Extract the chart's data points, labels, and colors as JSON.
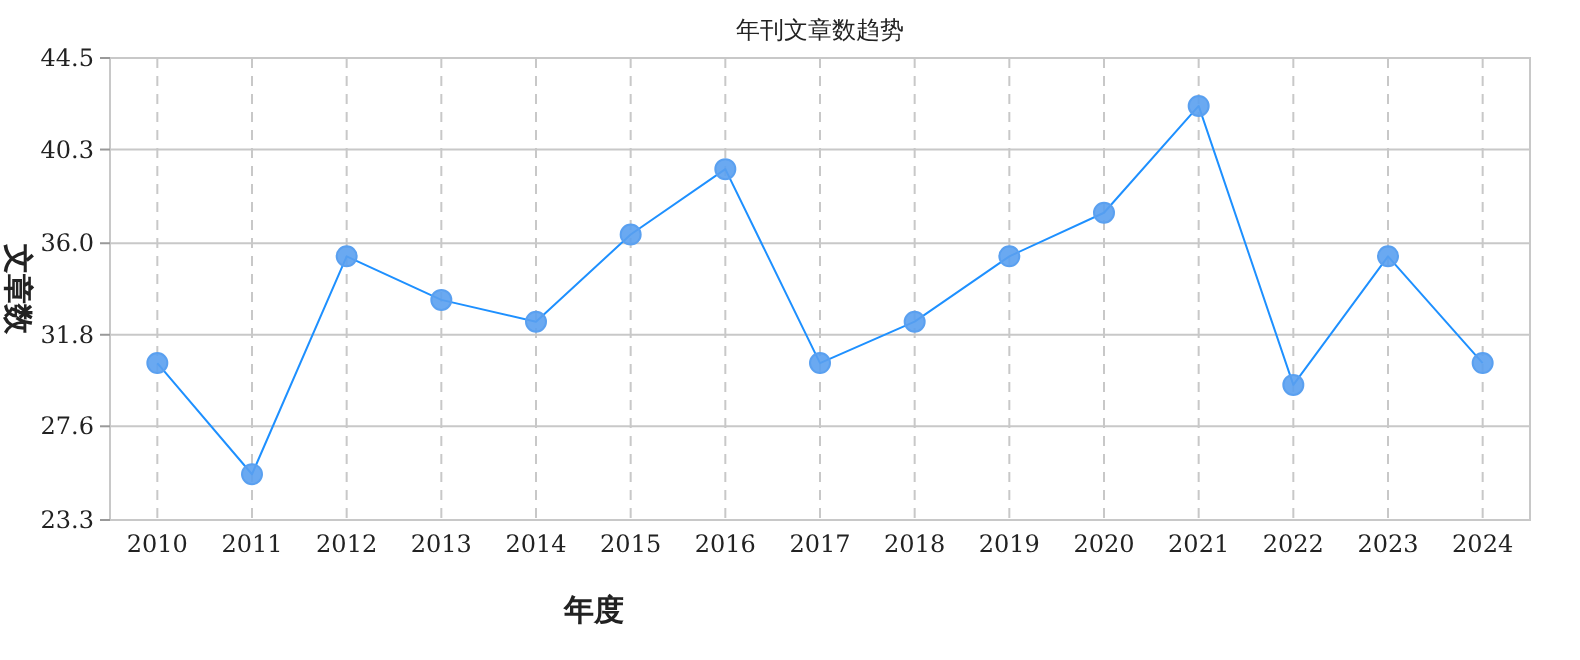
{
  "chart_data": {
    "type": "line",
    "title": "年刊文章数趋势",
    "xlabel": "年度",
    "ylabel": "文章数",
    "categories": [
      "2010",
      "2011",
      "2012",
      "2013",
      "2014",
      "2015",
      "2016",
      "2017",
      "2018",
      "2019",
      "2020",
      "2021",
      "2022",
      "2023",
      "2024"
    ],
    "series": [
      {
        "color": "#1e90ff",
        "values": [
          30.5,
          25.4,
          35.4,
          33.4,
          32.4,
          36.4,
          39.4,
          30.5,
          32.4,
          35.4,
          37.4,
          42.3,
          29.5,
          35.4,
          30.5
        ]
      }
    ],
    "ylim": [
      23.3,
      44.5
    ],
    "yticks": [
      23.3,
      27.6,
      31.8,
      {
        "value": 36,
        "label": "36.0"
      },
      40.3,
      44.5
    ],
    "grid": true,
    "marker": "circle",
    "line_style": "solid"
  }
}
